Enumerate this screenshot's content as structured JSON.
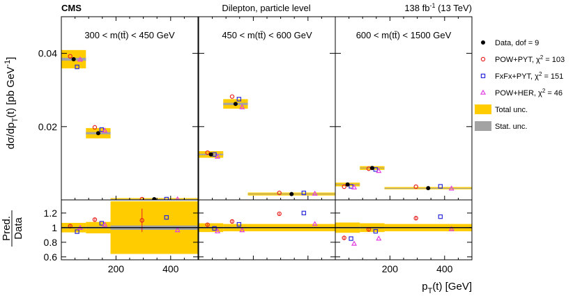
{
  "chart_data": {
    "type": "scatter",
    "header": {
      "experiment": "CMS",
      "channel": "Dilepton, particle level",
      "lumi_value": "138 fb",
      "lumi_exp": "-1",
      "lumi_energy": " (13 TeV)"
    },
    "upper_ylabel": {
      "a": "dσ/dp",
      "sub": "T",
      "b": "(t) [pb GeV",
      "sup": "-1",
      "c": "]"
    },
    "ratio_ylabel": {
      "num": "Pred.",
      "den": "Data"
    },
    "xlabel": {
      "a": "p",
      "sub": "T",
      "b": "(t) [GeV]"
    },
    "ylim": [
      0.0,
      0.05
    ],
    "ratio_ylim": [
      0.56,
      1.38
    ],
    "upper_yticks": [
      {
        "v": 0.02,
        "label": "0.02"
      },
      {
        "v": 0.04,
        "label": "0.04"
      }
    ],
    "ratio_yticks": [
      {
        "v": 0.6,
        "label": "0.6"
      },
      {
        "v": 0.8,
        "label": "0.8"
      },
      {
        "v": 1.0,
        "label": "1"
      },
      {
        "v": 1.2,
        "label": "1.2"
      }
    ],
    "colors": {
      "data": "#000000",
      "powpyt": "#e8211f",
      "fxfxpyt": "#2a2adb",
      "powher": "#e23de2",
      "total_unc": "#ffcc00",
      "stat_unc": "#a3a3a3"
    },
    "legend": [
      {
        "text": "Data, dof = 9",
        "key": "data"
      },
      {
        "text": "POW+PYT, χ",
        "sup": "2",
        "tail": " = 103",
        "key": "powpyt"
      },
      {
        "text": "FxFx+PYT, χ",
        "sup": "2",
        "tail": " = 151",
        "key": "fxfxpyt"
      },
      {
        "text": "POW+HER, χ",
        "sup": "2",
        "tail": " = 46",
        "key": "powher"
      },
      {
        "text": "Total unc.",
        "key": "total"
      },
      {
        "text": "Stat. unc.",
        "key": "stat"
      }
    ],
    "panels": [
      {
        "label": "300 < m(tt̄) < 450 GeV",
        "xlim": [
          0,
          500
        ],
        "xticks": [
          {
            "v": 200,
            "label": "200"
          },
          {
            "v": 400,
            "label": "400"
          }
        ],
        "bins": [
          {
            "lo": 0,
            "hi": 90,
            "data": 0.0384,
            "powpyt": 0.0392,
            "fxfxpyt": 0.0363,
            "powher": 0.0383,
            "tot": 0.0025,
            "stat": 0.0004,
            "r_data_tot": 0.065,
            "r_data_stat": 0.01,
            "r_powpyt": 1.02,
            "r_powpyt_err": 0.015,
            "r_fxfxpyt": 0.945,
            "r_powher": 0.997
          },
          {
            "lo": 90,
            "hi": 180,
            "data": 0.0182,
            "powpyt": 0.0198,
            "fxfxpyt": 0.0192,
            "powher": 0.0189,
            "tot": 0.0014,
            "stat": 0.0003,
            "r_data_tot": 0.078,
            "r_data_stat": 0.012,
            "r_powpyt": 1.11,
            "r_powpyt_err": 0.02,
            "r_fxfxpyt": 1.06,
            "r_powher": 1.04
          },
          {
            "lo": 180,
            "hi": 500,
            "data": 0.00018,
            "powpyt": 0.0002,
            "fxfxpyt": 0.0002,
            "powher": 0.00017,
            "tot": 0.0003,
            "stat": 5e-05,
            "r_data_tot": 0.36,
            "r_data_stat": 0.03,
            "r_powpyt": 1.1,
            "r_powpyt_err": 0.16,
            "r_fxfxpyt": 1.14,
            "r_powher": 0.965
          }
        ]
      },
      {
        "label": "450 < m(tt̄) < 600 GeV",
        "xlim": [
          0,
          500
        ],
        "xticks": [],
        "bins": [
          {
            "lo": 0,
            "hi": 90,
            "data": 0.0124,
            "powpyt": 0.0129,
            "fxfxpyt": 0.0124,
            "powher": 0.0118,
            "tot": 0.0009,
            "stat": 0.0002,
            "r_data_tot": 0.06,
            "r_data_stat": 0.01,
            "r_powpyt": 1.04,
            "r_powpyt_err": 0.015,
            "r_fxfxpyt": 0.99,
            "r_powher": 0.95
          },
          {
            "lo": 90,
            "hi": 180,
            "data": 0.0262,
            "powpyt": 0.0282,
            "fxfxpyt": 0.0275,
            "powher": 0.0253,
            "tot": 0.0013,
            "stat": 0.0003,
            "r_data_tot": 0.05,
            "r_data_stat": 0.01,
            "r_powpyt": 1.085,
            "r_powpyt_err": 0.02,
            "r_fxfxpyt": 1.045,
            "r_powher": 0.965
          },
          {
            "lo": 180,
            "hi": 500,
            "data": 0.0016,
            "powpyt": 0.0019,
            "fxfxpyt": 0.0019,
            "powher": 0.0017,
            "tot": 0.0004,
            "stat": 0.0001,
            "r_data_tot": 0.05,
            "r_data_stat": 0.008,
            "r_powpyt": 1.19,
            "r_powpyt_err": 0.015,
            "r_fxfxpyt": 1.2,
            "r_powher": 1.05
          }
        ]
      },
      {
        "label": "600 < m(tt̄) < 1500 GeV",
        "xlim": [
          0,
          500
        ],
        "xticks": [
          {
            "v": 200,
            "label": "200"
          },
          {
            "v": 400,
            "label": "400"
          }
        ],
        "bins": [
          {
            "lo": 0,
            "hi": 90,
            "data": 0.0042,
            "powpyt": 0.0036,
            "fxfxpyt": 0.0037,
            "powher": 0.0034,
            "tot": 0.0005,
            "stat": 0.0001,
            "r_data_tot": 0.07,
            "r_data_stat": 0.01,
            "r_powpyt": 0.86,
            "r_powpyt_err": 0.03,
            "r_fxfxpyt": 0.85,
            "r_powher": 0.78
          },
          {
            "lo": 90,
            "hi": 180,
            "data": 0.0087,
            "powpyt": 0.0085,
            "fxfxpyt": 0.0083,
            "powher": 0.0079,
            "tot": 0.0005,
            "stat": 0.0001,
            "r_data_tot": 0.06,
            "r_data_stat": 0.01,
            "r_powpyt": 0.975,
            "r_powpyt_err": 0.03,
            "r_fxfxpyt": 0.95,
            "r_powher": 0.85
          },
          {
            "lo": 180,
            "hi": 500,
            "data": 0.0032,
            "powpyt": 0.0036,
            "fxfxpyt": 0.0037,
            "powher": 0.0031,
            "tot": 0.0003,
            "stat": 5e-05,
            "r_data_tot": 0.05,
            "r_data_stat": 0.008,
            "r_powpyt": 1.13,
            "r_powpyt_err": 0.03,
            "r_fxfxpyt": 1.15,
            "r_powher": 0.98
          }
        ]
      }
    ]
  }
}
